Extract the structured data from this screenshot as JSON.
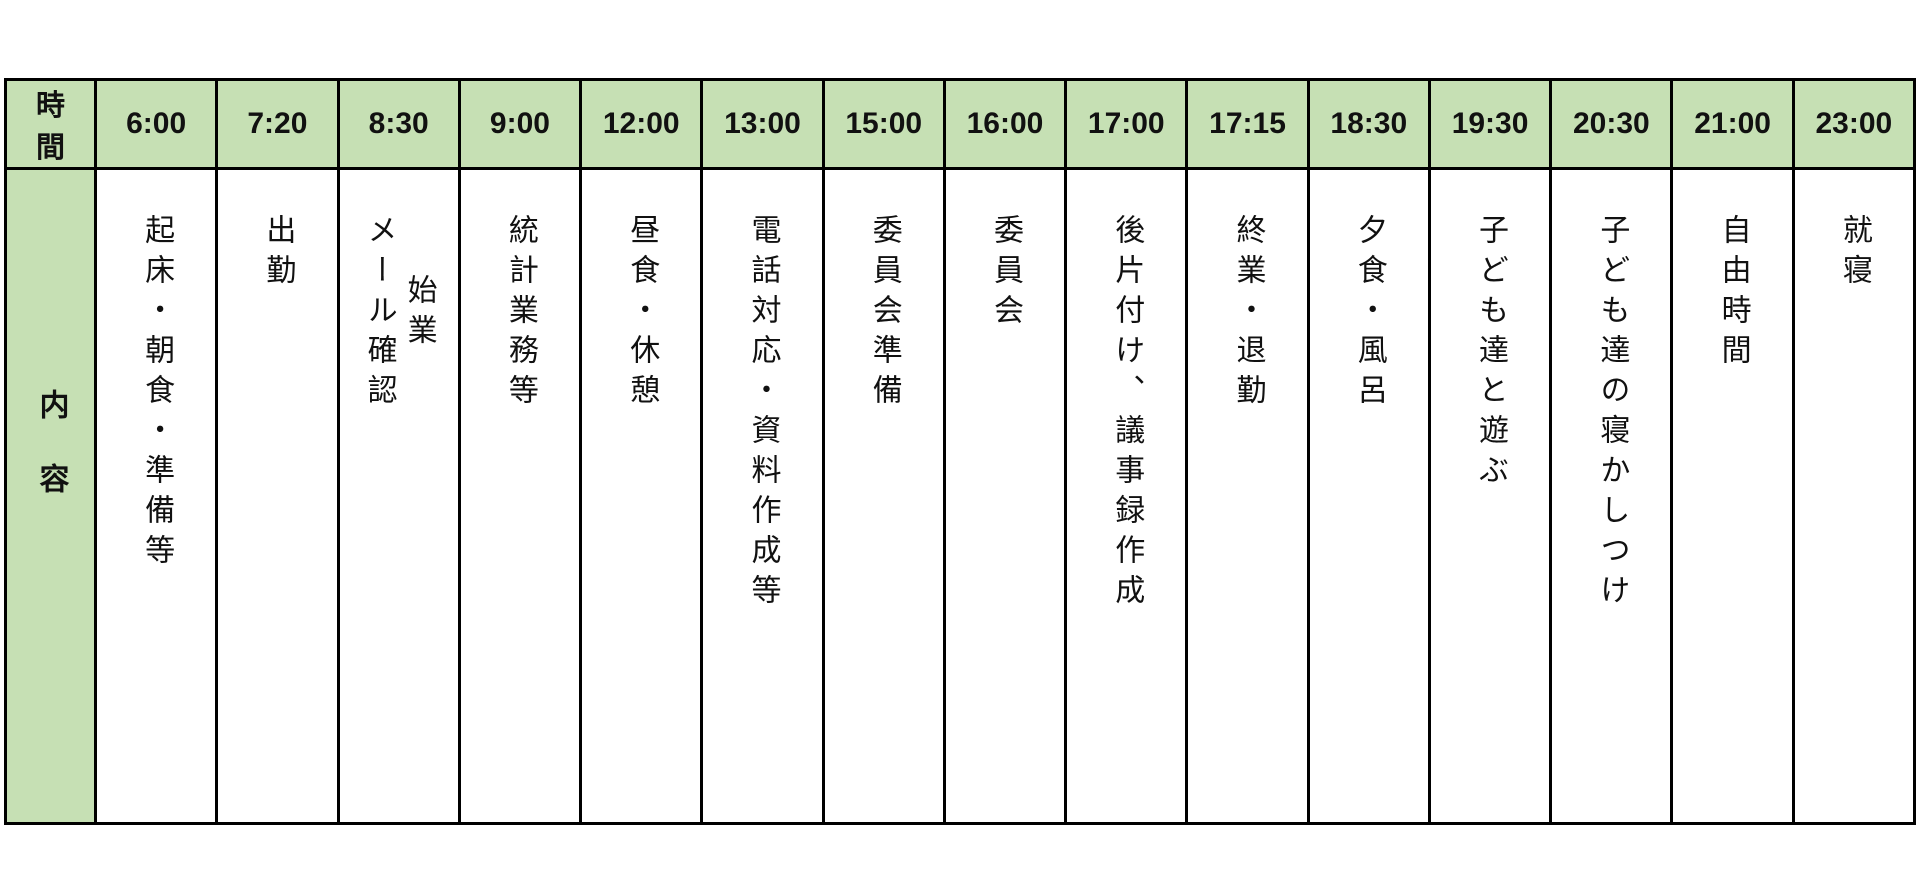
{
  "table": {
    "header_row_label": "時　間",
    "content_row_label": "内容",
    "columns": [
      {
        "time": "6:00",
        "content": "起床・朝食・準備等"
      },
      {
        "time": "7:20",
        "content": "出勤"
      },
      {
        "time": "8:30",
        "content": "始業\nメール確認"
      },
      {
        "time": "9:00",
        "content": "統計業務等"
      },
      {
        "time": "12:00",
        "content": "昼食・休憩"
      },
      {
        "time": "13:00",
        "content": "電話対応・資料作成等"
      },
      {
        "time": "15:00",
        "content": "委員会準備"
      },
      {
        "time": "16:00",
        "content": "委員会"
      },
      {
        "time": "17:00",
        "content": "後片付け、議事録作成"
      },
      {
        "time": "17:15",
        "content": "終業・退勤"
      },
      {
        "time": "18:30",
        "content": "夕食・風呂"
      },
      {
        "time": "19:30",
        "content": "子ども達と遊ぶ"
      },
      {
        "time": "20:30",
        "content": "子ども達の寝かしつけ"
      },
      {
        "time": "21:00",
        "content": "自由時間"
      },
      {
        "time": "23:00",
        "content": "就寝"
      }
    ],
    "colors": {
      "header_bg": "#c6e0b4",
      "cell_bg": "#ffffff",
      "border": "#000000",
      "text": "#111111"
    }
  }
}
